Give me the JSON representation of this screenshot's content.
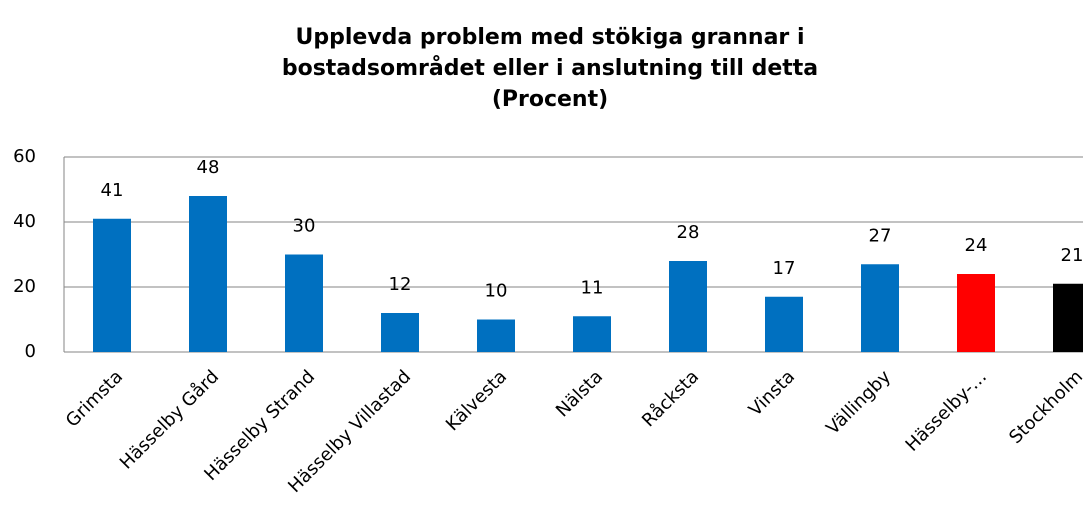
{
  "chart_data": {
    "type": "bar",
    "title": "Upplevda problem med stökiga grannar i bostadsområdet eller i anslutning till detta",
    "subtitle": "(Procent)",
    "categories": [
      "Grimsta",
      "Hässelby Gård",
      "Hässelby Strand",
      "Hässelby Villastad",
      "Kälvesta",
      "Nälsta",
      "Råcksta",
      "Vinsta",
      "Vällingby",
      "Hässelby-…",
      "Stockholm"
    ],
    "values": [
      41,
      48,
      30,
      12,
      10,
      11,
      28,
      17,
      27,
      24,
      21
    ],
    "colors": [
      "#0070c0",
      "#0070c0",
      "#0070c0",
      "#0070c0",
      "#0070c0",
      "#0070c0",
      "#0070c0",
      "#0070c0",
      "#0070c0",
      "#ff0000",
      "#000000"
    ],
    "ylim": [
      0,
      60
    ],
    "yticks": [
      0,
      20,
      40,
      60
    ],
    "grid": true
  }
}
